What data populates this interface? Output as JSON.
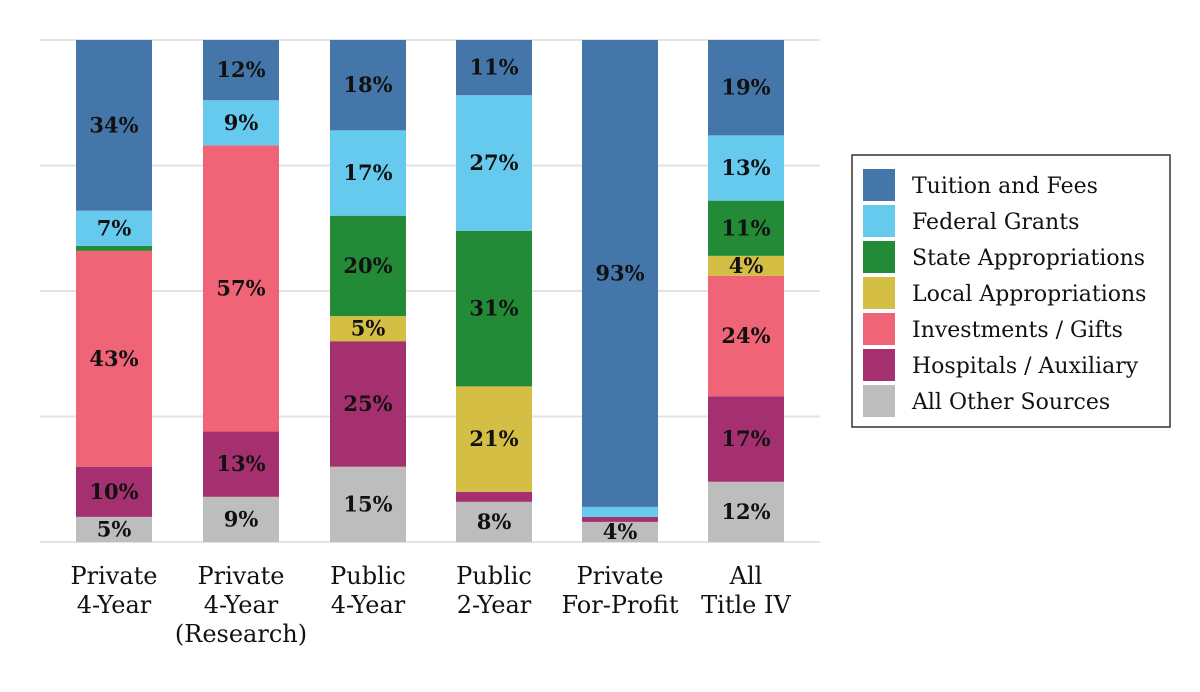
{
  "chart_data": {
    "type": "bar",
    "stacked": true,
    "normalized_percent": true,
    "categories": [
      [
        "Private",
        "4-Year"
      ],
      [
        "Private",
        "4-Year",
        "(Research)"
      ],
      [
        "Public",
        "4-Year"
      ],
      [
        "Public",
        "2-Year"
      ],
      [
        "Private",
        "For-Profit"
      ],
      [
        "All",
        "Title IV"
      ]
    ],
    "series": [
      {
        "name": "All Other Sources",
        "color": "#bdbdbd",
        "values": [
          5,
          9,
          15,
          8,
          4,
          12
        ],
        "labels": [
          "5%",
          "9%",
          "15%",
          "8%",
          "4%",
          "12%"
        ]
      },
      {
        "name": "Hospitals / Auxiliary",
        "color": "#a5306f",
        "values": [
          10,
          13,
          25,
          2,
          1,
          17
        ],
        "labels": [
          "10%",
          "13%",
          "25%",
          "",
          "",
          "17%"
        ]
      },
      {
        "name": "Investments / Gifts",
        "color": "#f06478",
        "values": [
          43,
          57,
          0,
          0,
          0,
          24
        ],
        "labels": [
          "43%",
          "57%",
          "",
          "",
          "",
          "24%"
        ]
      },
      {
        "name": "Local Appropriations",
        "color": "#d4bf44",
        "values": [
          0,
          0,
          5,
          21,
          0,
          4
        ],
        "labels": [
          "",
          "",
          "5%",
          "21%",
          "",
          "4%"
        ]
      },
      {
        "name": "State Appropriations",
        "color": "#238a37",
        "values": [
          1,
          0,
          20,
          31,
          0,
          11
        ],
        "labels": [
          "",
          "",
          "20%",
          "31%",
          "",
          "11%"
        ]
      },
      {
        "name": "Federal Grants",
        "color": "#66caee",
        "values": [
          7,
          9,
          17,
          27,
          2,
          13
        ],
        "labels": [
          "7%",
          "9%",
          "17%",
          "27%",
          "",
          "13%"
        ]
      },
      {
        "name": "Tuition and Fees",
        "color": "#4576aa",
        "values": [
          34,
          12,
          18,
          11,
          93,
          19
        ],
        "labels": [
          "34%",
          "12%",
          "18%",
          "11%",
          "93%",
          "19%"
        ]
      }
    ],
    "legend_order": [
      "Tuition and Fees",
      "Federal Grants",
      "State Appropriations",
      "Local Appropriations",
      "Investments / Gifts",
      "Hospitals / Auxiliary",
      "All Other Sources"
    ],
    "ylim": [
      0,
      100
    ],
    "grid": true,
    "legend_position": "right",
    "title": "",
    "xlabel": "",
    "ylabel": ""
  }
}
